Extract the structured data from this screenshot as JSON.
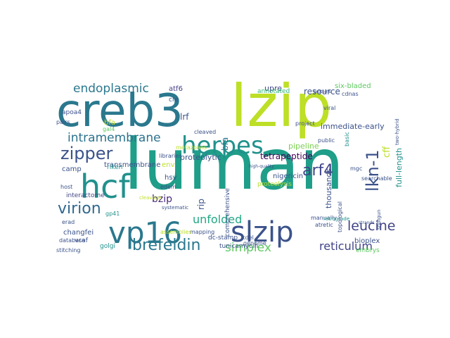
{
  "wordcloud": {
    "colors": {
      "teal": "#2a788e",
      "green": "#22a884",
      "lime": "#bddf26",
      "darkblue": "#414487",
      "navy": "#3b528b",
      "purple": "#482878",
      "mint": "#5ec962",
      "sea": "#21918c"
    },
    "words": [
      {
        "text": "luman",
        "color": "#1f9e89"
      },
      {
        "text": "lzip",
        "color": "#bddf26"
      },
      {
        "text": "creb3",
        "color": "#2a788e"
      },
      {
        "text": "herpes",
        "color": "#21918c"
      },
      {
        "text": "slzip",
        "color": "#3b528b"
      },
      {
        "text": "vp16",
        "color": "#2a788e"
      },
      {
        "text": "hcf",
        "color": "#21918c"
      },
      {
        "text": "zipper",
        "color": "#3b528b"
      },
      {
        "text": "virion",
        "color": "#31688e"
      },
      {
        "text": "endoplasmic",
        "color": "#2a788e"
      },
      {
        "text": "intramembrane",
        "color": "#2c728e"
      },
      {
        "text": "brefeldin",
        "color": "#2a788e"
      },
      {
        "text": "arf4",
        "color": "#414487"
      },
      {
        "text": "leucine",
        "color": "#3b528b"
      },
      {
        "text": "simplex",
        "color": "#414487"
      },
      {
        "text": "reticulum",
        "color": "#5ec962"
      },
      {
        "text": "unfolded",
        "color": "#414487"
      },
      {
        "text": "bzip",
        "color": "#22a884"
      },
      {
        "text": "lkn-1",
        "color": "#482878"
      },
      {
        "text": "atf6",
        "color": "#433e85"
      },
      {
        "text": "cre",
        "color": "#3b528b"
      },
      {
        "text": "lrf",
        "color": "#3b528b"
      },
      {
        "text": "bfa",
        "color": "#bddf26"
      },
      {
        "text": "proteolytic",
        "color": "#2a788e"
      },
      {
        "text": "tetrapeptide",
        "color": "#3b528b"
      },
      {
        "text": "pipeline",
        "color": "#440154"
      },
      {
        "text": "immediate-early",
        "color": "#7ad151"
      },
      {
        "text": "upre",
        "color": "#3b528b"
      },
      {
        "text": "annotated",
        "color": "#414487"
      },
      {
        "text": "six-bladed",
        "color": "#35b779"
      },
      {
        "text": "resource",
        "color": "#5ec962"
      },
      {
        "text": "cff",
        "color": "#3b528b"
      },
      {
        "text": "full-length",
        "color": "#bddf26"
      },
      {
        "text": "transmembrane",
        "color": "#21918c"
      },
      {
        "text": "riken",
        "color": "#3b528b"
      },
      {
        "text": "camp",
        "color": "#21918c"
      },
      {
        "text": "interactome",
        "color": "#3b528b"
      },
      {
        "text": "env",
        "color": "#414487"
      },
      {
        "text": "hsv",
        "color": "#bddf26"
      },
      {
        "text": "rip",
        "color": "#3b528b"
      },
      {
        "text": "nigericin",
        "color": "#3b528b"
      },
      {
        "text": "thousands",
        "color": "#3b528b"
      },
      {
        "text": "proteolysis",
        "color": "#3b528b"
      },
      {
        "text": "changfei",
        "color": "#b5de2b"
      },
      {
        "text": "vcaf",
        "color": "#3b528b"
      },
      {
        "text": "golgi",
        "color": "#3b528b"
      },
      {
        "text": "bioplex",
        "color": "#21918c"
      },
      {
        "text": "embrys",
        "color": "#3b528b"
      },
      {
        "text": "dc-stamp",
        "color": "#5ec962"
      },
      {
        "text": "tunicamycin",
        "color": "#3b528b"
      },
      {
        "text": "kdel",
        "color": "#3b528b"
      },
      {
        "text": "mapping",
        "color": "#3b528b"
      },
      {
        "text": "assemblies",
        "color": "#3b528b"
      },
      {
        "text": "stitching",
        "color": "#bddf26"
      },
      {
        "text": "database",
        "color": "#3b528b"
      },
      {
        "text": "erad",
        "color": "#3b528b"
      },
      {
        "text": "host",
        "color": "#3b528b"
      },
      {
        "text": "apoa4",
        "color": "#3b528b"
      },
      {
        "text": "pairs",
        "color": "#3b528b"
      },
      {
        "text": "gal4",
        "color": "#3b528b"
      },
      {
        "text": "cleaved",
        "color": "#5ec962"
      },
      {
        "text": "metazoans",
        "color": "#3b528b"
      },
      {
        "text": "libraries",
        "color": "#bddf26"
      },
      {
        "text": "edem",
        "color": "#3b528b"
      },
      {
        "text": "gp41",
        "color": "#3b528b"
      },
      {
        "text": "cleavage",
        "color": "#21918c"
      },
      {
        "text": "genome",
        "color": "#bddf26"
      },
      {
        "text": "comprehensive",
        "color": "#3b528b"
      },
      {
        "text": "manually",
        "color": "#3b528b"
      },
      {
        "text": "public",
        "color": "#3b528b"
      },
      {
        "text": "project",
        "color": "#3b528b"
      },
      {
        "text": "viral",
        "color": "#3b528b"
      },
      {
        "text": "mgc",
        "color": "#3b528b"
      },
      {
        "text": "searchable",
        "color": "#3b528b"
      },
      {
        "text": "cdnas",
        "color": "#3b528b"
      },
      {
        "text": "basic",
        "color": "#3b528b"
      },
      {
        "text": "topological",
        "color": "#21918c"
      },
      {
        "text": "retrograde",
        "color": "#3b528b"
      },
      {
        "text": "atretic",
        "color": "#21918c"
      },
      {
        "text": "shotgun",
        "color": "#3b528b"
      },
      {
        "text": "two-hybrid",
        "color": "#3b528b"
      },
      {
        "text": "systematic",
        "color": "#3b528b"
      },
      {
        "text": "proteins",
        "color": "#3b528b"
      },
      {
        "text": "high-quality",
        "color": "#3b528b"
      },
      {
        "text": "strands",
        "color": "#3b528b"
      },
      {
        "text": "hydrophobic",
        "color": "#3b528b"
      }
    ]
  }
}
